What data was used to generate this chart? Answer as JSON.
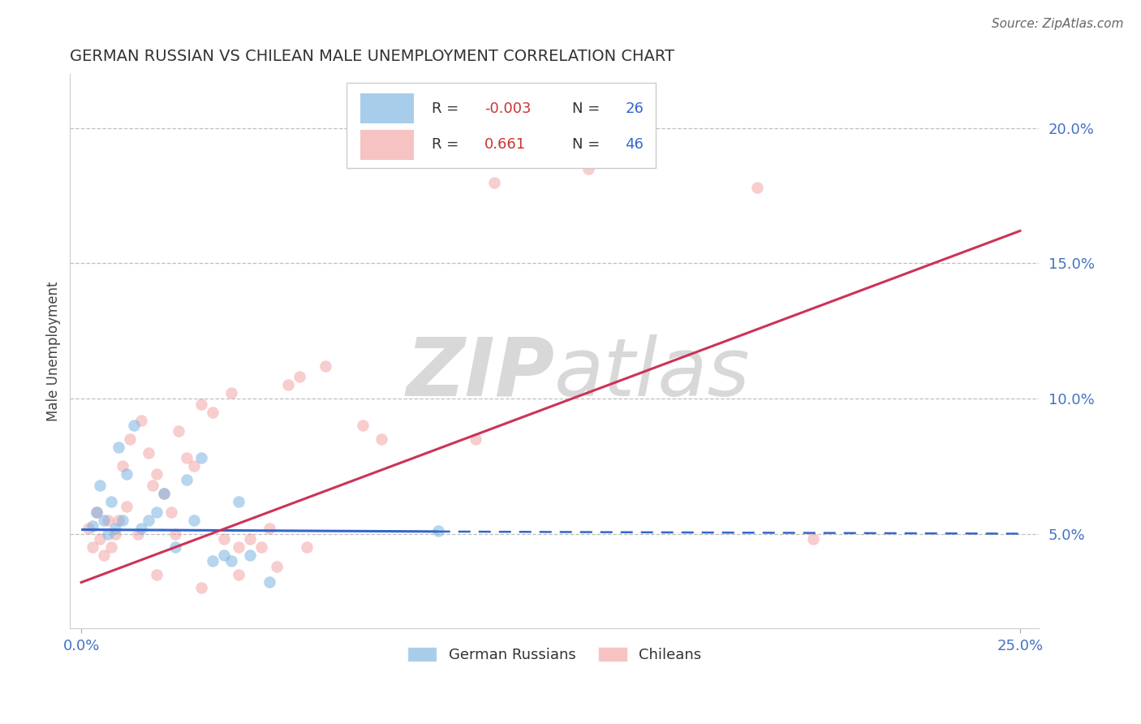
{
  "title": "GERMAN RUSSIAN VS CHILEAN MALE UNEMPLOYMENT CORRELATION CHART",
  "source": "Source: ZipAtlas.com",
  "xlabel_ticks": [
    "0.0%",
    "25.0%"
  ],
  "xlabel_values": [
    0.0,
    25.0
  ],
  "ylabel": "Male Unemployment",
  "ylabel_ticks": [
    "5.0%",
    "10.0%",
    "15.0%",
    "20.0%"
  ],
  "ylabel_values": [
    5.0,
    10.0,
    15.0,
    20.0
  ],
  "xlim": [
    -0.3,
    25.5
  ],
  "ylim": [
    1.5,
    22.0
  ],
  "blue_R": -0.003,
  "blue_N": 26,
  "pink_R": 0.661,
  "pink_N": 46,
  "background_color": "#ffffff",
  "grid_color": "#b0b0b0",
  "dot_size": 110,
  "blue_color": "#7ab3e0",
  "pink_color": "#f09090",
  "blue_line_color": "#3366cc",
  "pink_line_color": "#cc3355",
  "watermark_color": "#d8d8d8",
  "blue_line_x": [
    0.0,
    9.5,
    25.0
  ],
  "blue_line_y": [
    5.15,
    5.08,
    5.0
  ],
  "blue_solid_end": 9.5,
  "pink_line_x": [
    0.0,
    25.0
  ],
  "pink_line_y": [
    3.2,
    16.2
  ],
  "blue_points_x": [
    0.3,
    0.4,
    0.5,
    0.6,
    0.7,
    0.8,
    0.9,
    1.0,
    1.1,
    1.2,
    1.4,
    1.6,
    1.8,
    2.0,
    2.2,
    2.5,
    2.8,
    3.0,
    3.2,
    3.5,
    3.8,
    4.0,
    4.2,
    4.5,
    5.0,
    9.5
  ],
  "blue_points_y": [
    5.3,
    5.8,
    6.8,
    5.5,
    5.0,
    6.2,
    5.2,
    8.2,
    5.5,
    7.2,
    9.0,
    5.2,
    5.5,
    5.8,
    6.5,
    4.5,
    7.0,
    5.5,
    7.8,
    4.0,
    4.2,
    4.0,
    6.2,
    4.2,
    3.2,
    5.1
  ],
  "pink_points_x": [
    0.2,
    0.3,
    0.4,
    0.5,
    0.6,
    0.7,
    0.8,
    0.9,
    1.0,
    1.1,
    1.2,
    1.3,
    1.5,
    1.6,
    1.8,
    1.9,
    2.0,
    2.2,
    2.4,
    2.5,
    2.6,
    2.8,
    3.0,
    3.2,
    3.5,
    3.8,
    4.0,
    4.2,
    4.5,
    5.0,
    5.5,
    5.8,
    6.5,
    7.5,
    8.0,
    10.5,
    11.0,
    13.5,
    18.0,
    19.5,
    4.8,
    5.2,
    4.2,
    3.2,
    2.0,
    6.0
  ],
  "pink_points_y": [
    5.2,
    4.5,
    5.8,
    4.8,
    4.2,
    5.5,
    4.5,
    5.0,
    5.5,
    7.5,
    6.0,
    8.5,
    5.0,
    9.2,
    8.0,
    6.8,
    7.2,
    6.5,
    5.8,
    5.0,
    8.8,
    7.8,
    7.5,
    9.8,
    9.5,
    4.8,
    10.2,
    4.5,
    4.8,
    5.2,
    10.5,
    10.8,
    11.2,
    9.0,
    8.5,
    8.5,
    18.0,
    18.5,
    17.8,
    4.8,
    4.5,
    3.8,
    3.5,
    3.0,
    3.5,
    4.5
  ]
}
